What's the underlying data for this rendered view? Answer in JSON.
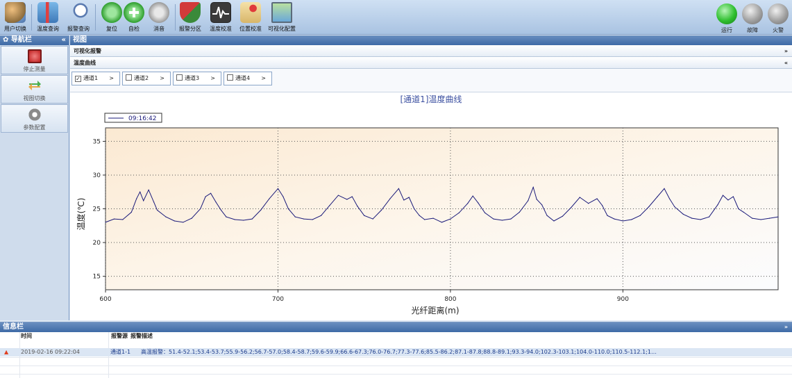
{
  "toolbar": {
    "buttons": [
      {
        "label": "用户切换",
        "icon": "users-icon"
      },
      {
        "label": "温度查询",
        "icon": "thermometer-icon"
      },
      {
        "label": "报警查询",
        "icon": "magnifier-icon"
      },
      {
        "label": "复位",
        "icon": "reset-icon"
      },
      {
        "label": "自检",
        "icon": "plus-icon"
      },
      {
        "label": "消音",
        "icon": "mute-icon"
      },
      {
        "label": "报警分区",
        "icon": "shield-icon"
      },
      {
        "label": "温度校准",
        "icon": "waveform-icon"
      },
      {
        "label": "位置校准",
        "icon": "map-pin-icon"
      },
      {
        "label": "可视化配置",
        "icon": "monitor-icon"
      }
    ],
    "status": [
      {
        "label": "运行",
        "color": "#2fbf2f"
      },
      {
        "label": "故障",
        "color": "#9a9a9a"
      },
      {
        "label": "火警",
        "color": "#9a9a9a"
      }
    ]
  },
  "nav": {
    "title": "导航栏",
    "collapse": "«",
    "items": [
      {
        "label": "停止测量",
        "icon": "stop-icon"
      },
      {
        "label": "视图切换",
        "icon": "swap-arrows-icon"
      },
      {
        "label": "参数配置",
        "icon": "gear-icon"
      }
    ]
  },
  "view": {
    "title": "视图",
    "section_alarm": "可视化报警",
    "section_alarm_chev": "»",
    "section_curve": "温度曲线",
    "section_curve_chev": "«",
    "channels": [
      {
        "label": "通道1",
        "checked": true
      },
      {
        "label": "通道2",
        "checked": false
      },
      {
        "label": "通道3",
        "checked": false
      },
      {
        "label": "通道4",
        "checked": false
      }
    ],
    "channel_arrow": ">"
  },
  "chart_data": {
    "type": "line",
    "title": "[通道1]温度曲线",
    "xlabel": "光纤距离(m)",
    "ylabel": "温度(℃)",
    "xlim": [
      600,
      990
    ],
    "ylim": [
      13,
      37
    ],
    "x_ticks": [
      600,
      700,
      800,
      900
    ],
    "y_ticks": [
      15,
      20,
      25,
      30,
      35
    ],
    "grid": true,
    "legend": {
      "position": "top-left",
      "entries": [
        "09:16:42"
      ]
    },
    "series": [
      {
        "name": "09:16:42",
        "color": "#1a1a7a",
        "x": [
          600,
          605,
          610,
          615,
          618,
          620,
          622,
          625,
          628,
          630,
          635,
          640,
          645,
          650,
          655,
          658,
          661,
          664,
          667,
          670,
          675,
          680,
          685,
          690,
          695,
          700,
          703,
          706,
          710,
          715,
          720,
          725,
          730,
          735,
          740,
          743,
          746,
          750,
          755,
          760,
          765,
          770,
          773,
          776,
          779,
          782,
          785,
          790,
          795,
          800,
          805,
          810,
          813,
          816,
          820,
          825,
          830,
          835,
          840,
          845,
          848,
          850,
          853,
          856,
          860,
          865,
          870,
          875,
          880,
          885,
          888,
          891,
          895,
          900,
          905,
          910,
          915,
          920,
          924,
          927,
          930,
          935,
          940,
          945,
          950,
          955,
          958,
          961,
          964,
          967,
          970,
          975,
          980,
          985,
          990
        ],
        "y": [
          23.0,
          23.5,
          23.4,
          24.5,
          26.5,
          27.5,
          26.2,
          27.8,
          26.0,
          24.8,
          23.8,
          23.2,
          23.0,
          23.6,
          25.0,
          26.8,
          27.3,
          26.0,
          24.8,
          23.8,
          23.4,
          23.3,
          23.5,
          24.8,
          26.5,
          28.0,
          26.8,
          25.0,
          23.8,
          23.5,
          23.4,
          24.0,
          25.5,
          27.0,
          26.4,
          26.8,
          25.4,
          24.0,
          23.5,
          24.8,
          26.5,
          28.0,
          26.3,
          26.7,
          25.0,
          24.0,
          23.4,
          23.6,
          23.0,
          23.5,
          24.4,
          25.8,
          26.9,
          25.9,
          24.4,
          23.5,
          23.3,
          23.5,
          24.5,
          26.2,
          28.2,
          26.4,
          25.6,
          24.0,
          23.2,
          23.9,
          25.2,
          26.7,
          25.8,
          26.5,
          25.5,
          24.0,
          23.5,
          23.2,
          23.4,
          24.0,
          25.3,
          26.8,
          28.0,
          26.5,
          25.3,
          24.2,
          23.6,
          23.4,
          23.8,
          25.6,
          27.0,
          26.3,
          26.8,
          25.0,
          24.5,
          23.6,
          23.4,
          23.6,
          23.8
        ]
      }
    ]
  },
  "info": {
    "title": "信息栏",
    "chev": "»",
    "columns": {
      "time": "时间",
      "source": "报警源",
      "desc": "报警描述"
    },
    "rows": [
      {
        "time": "2019-02-16 09:22:04",
        "source": "通道1-1",
        "desc": "高温报警：51.4-52.1;53.4-53.7;55.9-56.2;56.7-57.0;58.4-58.7;59.6-59.9;66.6-67.3;76.0-76.7;77.3-77.6;85.5-86.2;87.1-87.8;88.8-89.1;93.3-94.0;102.3-103.1;104.0-110.0;110.5-112.1;1…"
      }
    ]
  }
}
